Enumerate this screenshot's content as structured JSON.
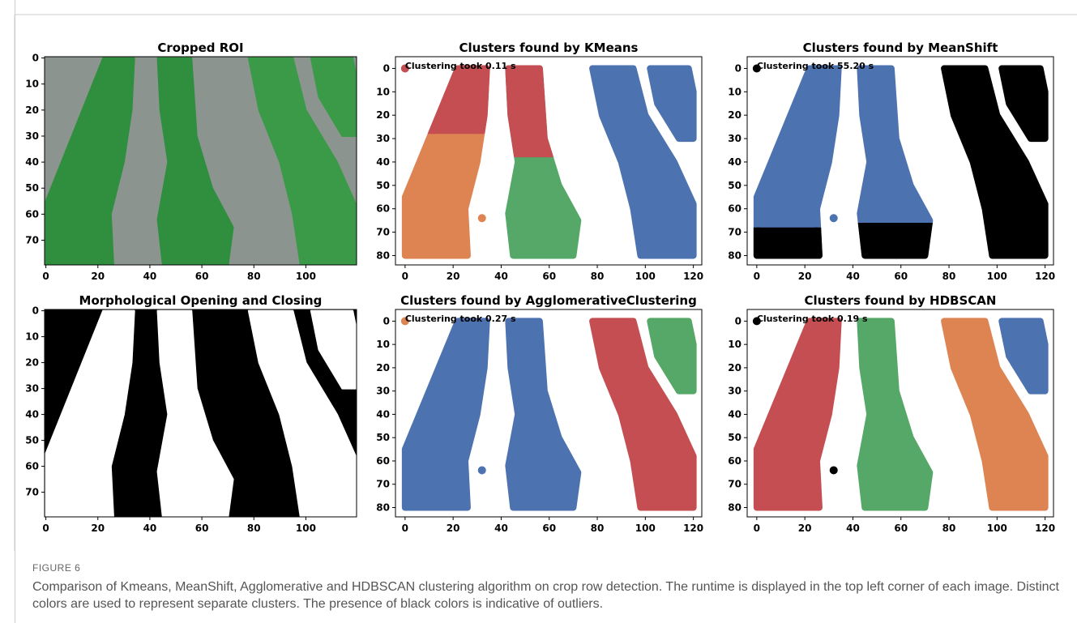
{
  "figure": {
    "panels": [
      {
        "title": "Cropped ROI",
        "kind": "photo",
        "xlim": [
          -0.5,
          119.5
        ],
        "ylim": [
          79.5,
          -0.5
        ],
        "xticks": [
          0,
          20,
          40,
          60,
          80,
          100
        ],
        "yticks": [
          0,
          10,
          20,
          30,
          40,
          50,
          60,
          70
        ]
      },
      {
        "title": "Clusters found by KMeans",
        "kind": "kmeans",
        "annotation": "Clustering took 0.11 s",
        "xlim": [
          -4,
          123.5
        ],
        "ylim": [
          84,
          -5
        ],
        "xticks": [
          0,
          20,
          40,
          60,
          80,
          100,
          120
        ],
        "yticks": [
          0,
          10,
          20,
          30,
          40,
          50,
          60,
          70,
          80
        ]
      },
      {
        "title": "Clusters found by MeanShift",
        "kind": "meanshift",
        "annotation": "Clustering took 55.20 s",
        "xlim": [
          -4,
          123.5
        ],
        "ylim": [
          84,
          -5
        ],
        "xticks": [
          0,
          20,
          40,
          60,
          80,
          100,
          120
        ],
        "yticks": [
          0,
          10,
          20,
          30,
          40,
          50,
          60,
          70,
          80
        ]
      },
      {
        "title": "Morphological Opening and Closing",
        "kind": "mask",
        "xlim": [
          -0.5,
          119.5
        ],
        "ylim": [
          79.5,
          -0.5
        ],
        "xticks": [
          0,
          20,
          40,
          60,
          80,
          100
        ],
        "yticks": [
          0,
          10,
          20,
          30,
          40,
          50,
          60,
          70
        ]
      },
      {
        "title": "Clusters found by AgglomerativeClustering",
        "kind": "agglo",
        "annotation": "Clustering took 0.27 s",
        "xlim": [
          -4,
          123.5
        ],
        "ylim": [
          84,
          -5
        ],
        "xticks": [
          0,
          20,
          40,
          60,
          80,
          100,
          120
        ],
        "yticks": [
          0,
          10,
          20,
          30,
          40,
          50,
          60,
          70,
          80
        ]
      },
      {
        "title": "Clusters found by HDBSCAN",
        "kind": "hdbscan",
        "annotation": "Clustering took 0.19 s",
        "xlim": [
          -4,
          123.5
        ],
        "ylim": [
          84,
          -5
        ],
        "xticks": [
          0,
          20,
          40,
          60,
          80,
          100,
          120
        ],
        "yticks": [
          0,
          10,
          20,
          30,
          40,
          50,
          60,
          70,
          80
        ]
      }
    ],
    "label": "FIGURE 6",
    "caption": "Comparison of Kmeans, MeanShift, Agglomerative and HDBSCAN clustering algorithm on crop row detection. The runtime is displayed in the top left corner of each image. Distinct colors are used to represent separate clusters. The presence of black colors is indicative of outliers."
  }
}
